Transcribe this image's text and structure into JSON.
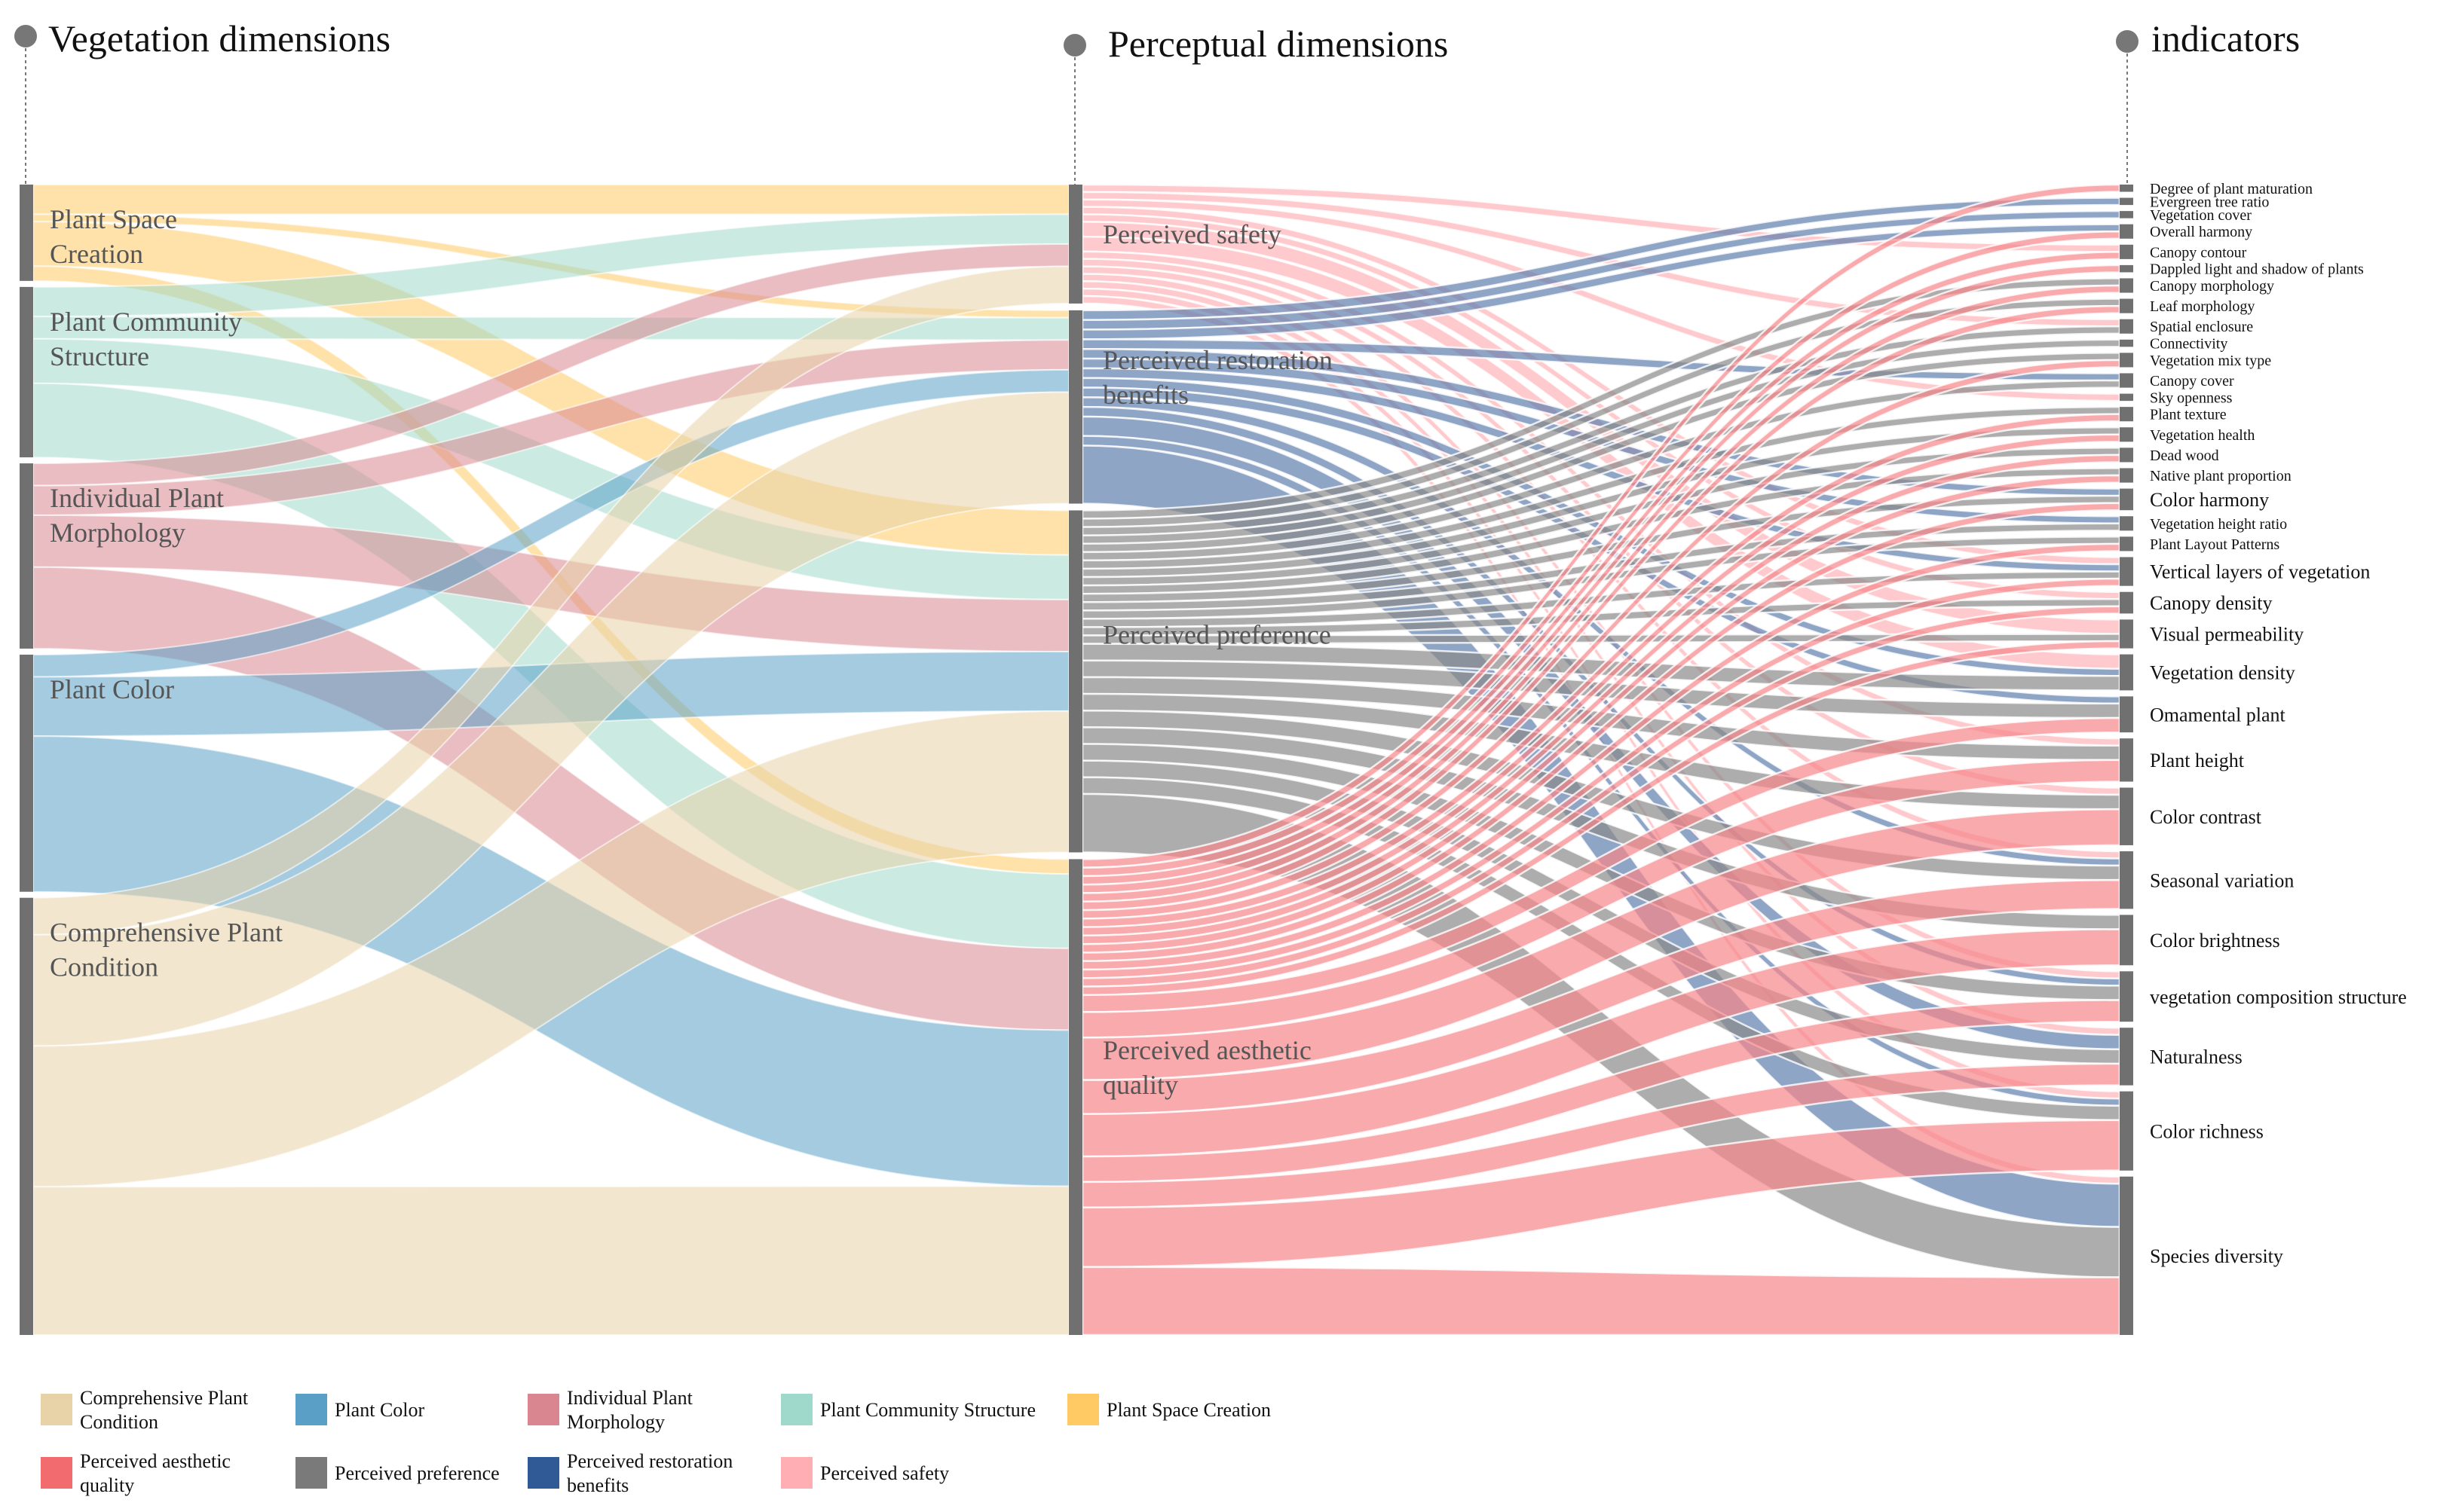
{
  "titles": {
    "vegetation": "Vegetation dimensions",
    "perceptual": "Perceptual dimensions",
    "indicators": "indicators"
  },
  "colors": {
    "Comprehensive Plant Condition": "#e8d2a8",
    "Plant Color": "#5aa0c6",
    "Individual Plant Morphology": "#d98690",
    "Plant Community Structure": "#9fd9cb",
    "Plant Space Creation": "#ffca63",
    "Perceived aesthetic quality": "#f26b6e",
    "Perceived preference": "#7a7a7a",
    "Perceived restoration benefits": "#2f5a95",
    "Perceived safety": "#ffaeb3"
  },
  "nodes": {
    "vegetation": [
      {
        "name": "Plant Space Creation",
        "lines": [
          "Plant Space",
          "Creation"
        ]
      },
      {
        "name": "Plant Community Structure",
        "lines": [
          "Plant Community",
          "Structure"
        ]
      },
      {
        "name": "Individual Plant Morphology",
        "lines": [
          "Individual Plant",
          "Morphology"
        ]
      },
      {
        "name": "Plant Color",
        "lines": [
          "Plant Color"
        ]
      },
      {
        "name": "Comprehensive Plant Condition",
        "lines": [
          "Comprehensive Plant",
          "Condition"
        ]
      }
    ],
    "perceptual": [
      {
        "name": "Perceived safety",
        "lines": [
          "Perceived safety"
        ]
      },
      {
        "name": "Perceived restoration benefits",
        "lines": [
          "Perceived restoration",
          "benefits"
        ]
      },
      {
        "name": "Perceived preference",
        "lines": [
          "Perceived preference"
        ]
      },
      {
        "name": "Perceived aesthetic quality",
        "lines": [
          "Perceived aesthetic",
          "quality"
        ]
      }
    ],
    "indicators": [
      "Degree of plant maturation",
      "Evergreen tree ratio",
      "Vegetation cover",
      "Overall harmony",
      "Canopy contour",
      "Dappled light and shadow of plants",
      "Canopy morphology",
      "Leaf morphology",
      "Spatial enclosure",
      "Connectivity",
      "Vegetation mix type",
      "Canopy cover",
      "Sky openness",
      "Plant texture",
      "Vegetation health",
      "Dead wood",
      "Native plant proportion",
      "Color harmony",
      "Vegetation height ratio",
      "Plant Layout Patterns",
      "Vertical layers of vegetation",
      "Canopy density",
      "Visual permeability",
      "Vegetation density",
      "Omamental plant",
      "Plant height",
      "Color contrast",
      "Seasonal variation",
      "Color brightness",
      "vegetation composition structure",
      "Naturalness",
      "Color richness",
      "Species diversity"
    ]
  },
  "chart_data": {
    "type": "sankey",
    "links_stage1": [
      {
        "source": "Plant Space Creation",
        "target": "Perceived safety",
        "value": 4
      },
      {
        "source": "Plant Space Creation",
        "target": "Perceived restoration benefits",
        "value": 1
      },
      {
        "source": "Plant Space Creation",
        "target": "Perceived preference",
        "value": 6
      },
      {
        "source": "Plant Space Creation",
        "target": "Perceived aesthetic quality",
        "value": 2
      },
      {
        "source": "Plant Community Structure",
        "target": "Perceived safety",
        "value": 4
      },
      {
        "source": "Plant Community Structure",
        "target": "Perceived restoration benefits",
        "value": 3
      },
      {
        "source": "Plant Community Structure",
        "target": "Perceived preference",
        "value": 6
      },
      {
        "source": "Plant Community Structure",
        "target": "Perceived aesthetic quality",
        "value": 10
      },
      {
        "source": "Individual Plant Morphology",
        "target": "Perceived safety",
        "value": 3
      },
      {
        "source": "Individual Plant Morphology",
        "target": "Perceived restoration benefits",
        "value": 4
      },
      {
        "source": "Individual Plant Morphology",
        "target": "Perceived preference",
        "value": 7
      },
      {
        "source": "Individual Plant Morphology",
        "target": "Perceived aesthetic quality",
        "value": 11
      },
      {
        "source": "Plant Color",
        "target": "Perceived restoration benefits",
        "value": 3
      },
      {
        "source": "Plant Color",
        "target": "Perceived preference",
        "value": 8
      },
      {
        "source": "Plant Color",
        "target": "Perceived aesthetic quality",
        "value": 21
      },
      {
        "source": "Comprehensive Plant Condition",
        "target": "Perceived safety",
        "value": 5
      },
      {
        "source": "Comprehensive Plant Condition",
        "target": "Perceived restoration benefits",
        "value": 15
      },
      {
        "source": "Comprehensive Plant Condition",
        "target": "Perceived preference",
        "value": 19
      },
      {
        "source": "Comprehensive Plant Condition",
        "target": "Perceived aesthetic quality",
        "value": 20
      }
    ],
    "links_stage2": [
      {
        "source": "Perceived safety",
        "target": "Canopy contour",
        "value": 1
      },
      {
        "source": "Perceived safety",
        "target": "Spatial enclosure",
        "value": 1
      },
      {
        "source": "Perceived safety",
        "target": "Sky openness",
        "value": 1
      },
      {
        "source": "Perceived safety",
        "target": "Vertical layers of vegetation",
        "value": 1
      },
      {
        "source": "Perceived safety",
        "target": "Canopy density",
        "value": 1
      },
      {
        "source": "Perceived safety",
        "target": "Visual permeability",
        "value": 2
      },
      {
        "source": "Perceived safety",
        "target": "Vegetation density",
        "value": 2
      },
      {
        "source": "Perceived safety",
        "target": "Plant height",
        "value": 1
      },
      {
        "source": "Perceived safety",
        "target": "vegetation composition structure",
        "value": 1
      },
      {
        "source": "Perceived safety",
        "target": "Naturalness",
        "value": 1
      },
      {
        "source": "Perceived safety",
        "target": "Color richness",
        "value": 1
      },
      {
        "source": "Perceived safety",
        "target": "Species diversity",
        "value": 1
      },
      {
        "source": "Perceived safety",
        "target": "Seasonal variation",
        "value": 1
      },
      {
        "source": "Perceived safety",
        "target": "Color contrast",
        "value": 1
      },
      {
        "source": "Perceived restoration benefits",
        "target": "Evergreen tree ratio",
        "value": 1
      },
      {
        "source": "Perceived restoration benefits",
        "target": "Vegetation cover",
        "value": 1
      },
      {
        "source": "Perceived restoration benefits",
        "target": "Overall harmony",
        "value": 1
      },
      {
        "source": "Perceived restoration benefits",
        "target": "Canopy cover",
        "value": 1
      },
      {
        "source": "Perceived restoration benefits",
        "target": "Color harmony",
        "value": 1
      },
      {
        "source": "Perceived restoration benefits",
        "target": "Vegetation height ratio",
        "value": 1
      },
      {
        "source": "Perceived restoration benefits",
        "target": "Vertical layers of vegetation",
        "value": 1
      },
      {
        "source": "Perceived restoration benefits",
        "target": "Vegetation density",
        "value": 1
      },
      {
        "source": "Perceived restoration benefits",
        "target": "Omamental plant",
        "value": 1
      },
      {
        "source": "Perceived restoration benefits",
        "target": "Seasonal variation",
        "value": 1
      },
      {
        "source": "Perceived restoration benefits",
        "target": "vegetation composition structure",
        "value": 1
      },
      {
        "source": "Perceived restoration benefits",
        "target": "Naturalness",
        "value": 2
      },
      {
        "source": "Perceived restoration benefits",
        "target": "Color richness",
        "value": 1
      },
      {
        "source": "Perceived restoration benefits",
        "target": "Species diversity",
        "value": 6
      },
      {
        "source": "Perceived preference",
        "target": "Canopy morphology",
        "value": 1
      },
      {
        "source": "Perceived preference",
        "target": "Leaf morphology",
        "value": 1
      },
      {
        "source": "Perceived preference",
        "target": "Spatial enclosure",
        "value": 1
      },
      {
        "source": "Perceived preference",
        "target": "Connectivity",
        "value": 1
      },
      {
        "source": "Perceived preference",
        "target": "Vegetation mix type",
        "value": 1
      },
      {
        "source": "Perceived preference",
        "target": "Canopy cover",
        "value": 1
      },
      {
        "source": "Perceived preference",
        "target": "Plant texture",
        "value": 1
      },
      {
        "source": "Perceived preference",
        "target": "Vegetation health",
        "value": 1
      },
      {
        "source": "Perceived preference",
        "target": "Dead wood",
        "value": 1
      },
      {
        "source": "Perceived preference",
        "target": "Native plant proportion",
        "value": 1
      },
      {
        "source": "Perceived preference",
        "target": "Color harmony",
        "value": 1
      },
      {
        "source": "Perceived preference",
        "target": "Vegetation height ratio",
        "value": 1
      },
      {
        "source": "Perceived preference",
        "target": "Plant Layout Patterns",
        "value": 1
      },
      {
        "source": "Perceived preference",
        "target": "Vertical layers of vegetation",
        "value": 1
      },
      {
        "source": "Perceived preference",
        "target": "Canopy density",
        "value": 1
      },
      {
        "source": "Perceived preference",
        "target": "Visual permeability",
        "value": 1
      },
      {
        "source": "Perceived preference",
        "target": "Vegetation density",
        "value": 2
      },
      {
        "source": "Perceived preference",
        "target": "Omamental plant",
        "value": 2
      },
      {
        "source": "Perceived preference",
        "target": "Plant height",
        "value": 2
      },
      {
        "source": "Perceived preference",
        "target": "Color contrast",
        "value": 2
      },
      {
        "source": "Perceived preference",
        "target": "Seasonal variation",
        "value": 2
      },
      {
        "source": "Perceived preference",
        "target": "Color brightness",
        "value": 2
      },
      {
        "source": "Perceived preference",
        "target": "vegetation composition structure",
        "value": 2
      },
      {
        "source": "Perceived preference",
        "target": "Naturalness",
        "value": 2
      },
      {
        "source": "Perceived preference",
        "target": "Color richness",
        "value": 2
      },
      {
        "source": "Perceived preference",
        "target": "Species diversity",
        "value": 7
      },
      {
        "source": "Perceived aesthetic quality",
        "target": "Degree of plant maturation",
        "value": 1
      },
      {
        "source": "Perceived aesthetic quality",
        "target": "Overall harmony",
        "value": 1
      },
      {
        "source": "Perceived aesthetic quality",
        "target": "Canopy contour",
        "value": 1
      },
      {
        "source": "Perceived aesthetic quality",
        "target": "Dappled light and shadow of plants",
        "value": 1
      },
      {
        "source": "Perceived aesthetic quality",
        "target": "Canopy morphology",
        "value": 1
      },
      {
        "source": "Perceived aesthetic quality",
        "target": "Leaf morphology",
        "value": 1
      },
      {
        "source": "Perceived aesthetic quality",
        "target": "Vegetation mix type",
        "value": 1
      },
      {
        "source": "Perceived aesthetic quality",
        "target": "Plant texture",
        "value": 1
      },
      {
        "source": "Perceived aesthetic quality",
        "target": "Vegetation health",
        "value": 1
      },
      {
        "source": "Perceived aesthetic quality",
        "target": "Dead wood",
        "value": 1
      },
      {
        "source": "Perceived aesthetic quality",
        "target": "Native plant proportion",
        "value": 1
      },
      {
        "source": "Perceived aesthetic quality",
        "target": "Color harmony",
        "value": 1
      },
      {
        "source": "Perceived aesthetic quality",
        "target": "Plant Layout Patterns",
        "value": 1
      },
      {
        "source": "Perceived aesthetic quality",
        "target": "Vertical layers of vegetation",
        "value": 1
      },
      {
        "source": "Perceived aesthetic quality",
        "target": "Canopy density",
        "value": 1
      },
      {
        "source": "Perceived aesthetic quality",
        "target": "Visual permeability",
        "value": 1
      },
      {
        "source": "Perceived aesthetic quality",
        "target": "Omamental plant",
        "value": 2
      },
      {
        "source": "Perceived aesthetic quality",
        "target": "Plant height",
        "value": 3
      },
      {
        "source": "Perceived aesthetic quality",
        "target": "Color contrast",
        "value": 5
      },
      {
        "source": "Perceived aesthetic quality",
        "target": "Seasonal variation",
        "value": 4
      },
      {
        "source": "Perceived aesthetic quality",
        "target": "Color brightness",
        "value": 5
      },
      {
        "source": "Perceived aesthetic quality",
        "target": "vegetation composition structure",
        "value": 3
      },
      {
        "source": "Perceived aesthetic quality",
        "target": "Naturalness",
        "value": 3
      },
      {
        "source": "Perceived aesthetic quality",
        "target": "Color richness",
        "value": 7
      },
      {
        "source": "Perceived aesthetic quality",
        "target": "Species diversity",
        "value": 8
      }
    ]
  },
  "legend": [
    {
      "key": "Comprehensive Plant Condition",
      "lines": [
        "Comprehensive Plant",
        "Condition"
      ]
    },
    {
      "key": "Plant Color",
      "lines": [
        "Plant Color"
      ]
    },
    {
      "key": "Individual Plant Morphology",
      "lines": [
        "Individual Plant",
        "Morphology"
      ]
    },
    {
      "key": "Plant Community Structure",
      "lines": [
        "Plant Community Structure"
      ]
    },
    {
      "key": "Plant Space Creation",
      "lines": [
        "Plant Space Creation"
      ]
    },
    {
      "key": "Perceived aesthetic quality",
      "lines": [
        "Perceived aesthetic",
        "quality"
      ]
    },
    {
      "key": "Perceived preference",
      "lines": [
        "Perceived preference"
      ]
    },
    {
      "key": "Perceived restoration benefits",
      "lines": [
        "Perceived restoration",
        "benefits"
      ]
    },
    {
      "key": "Perceived safety",
      "lines": [
        "Perceived safety"
      ]
    }
  ]
}
